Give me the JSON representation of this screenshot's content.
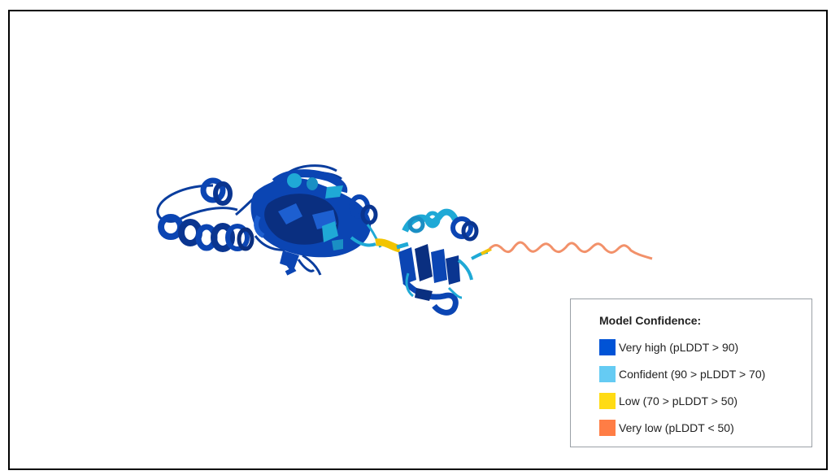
{
  "legend": {
    "title": "Model Confidence:",
    "items": [
      {
        "label": "Very high (pLDDT > 90)",
        "color": "#0053d6"
      },
      {
        "label": "Confident (90 > pLDDT > 70)",
        "color": "#65cbf3"
      },
      {
        "label": "Low (70 > pLDDT > 50)",
        "color": "#ffdb13"
      },
      {
        "label": "Very low (pLDDT < 50)",
        "color": "#ff7d45"
      }
    ]
  },
  "colors": {
    "very_high": "#0b45b3",
    "very_high_dark": "#0a2f80",
    "confident": "#1fa9d6",
    "low": "#f2c400",
    "very_low": "#f2916a"
  }
}
